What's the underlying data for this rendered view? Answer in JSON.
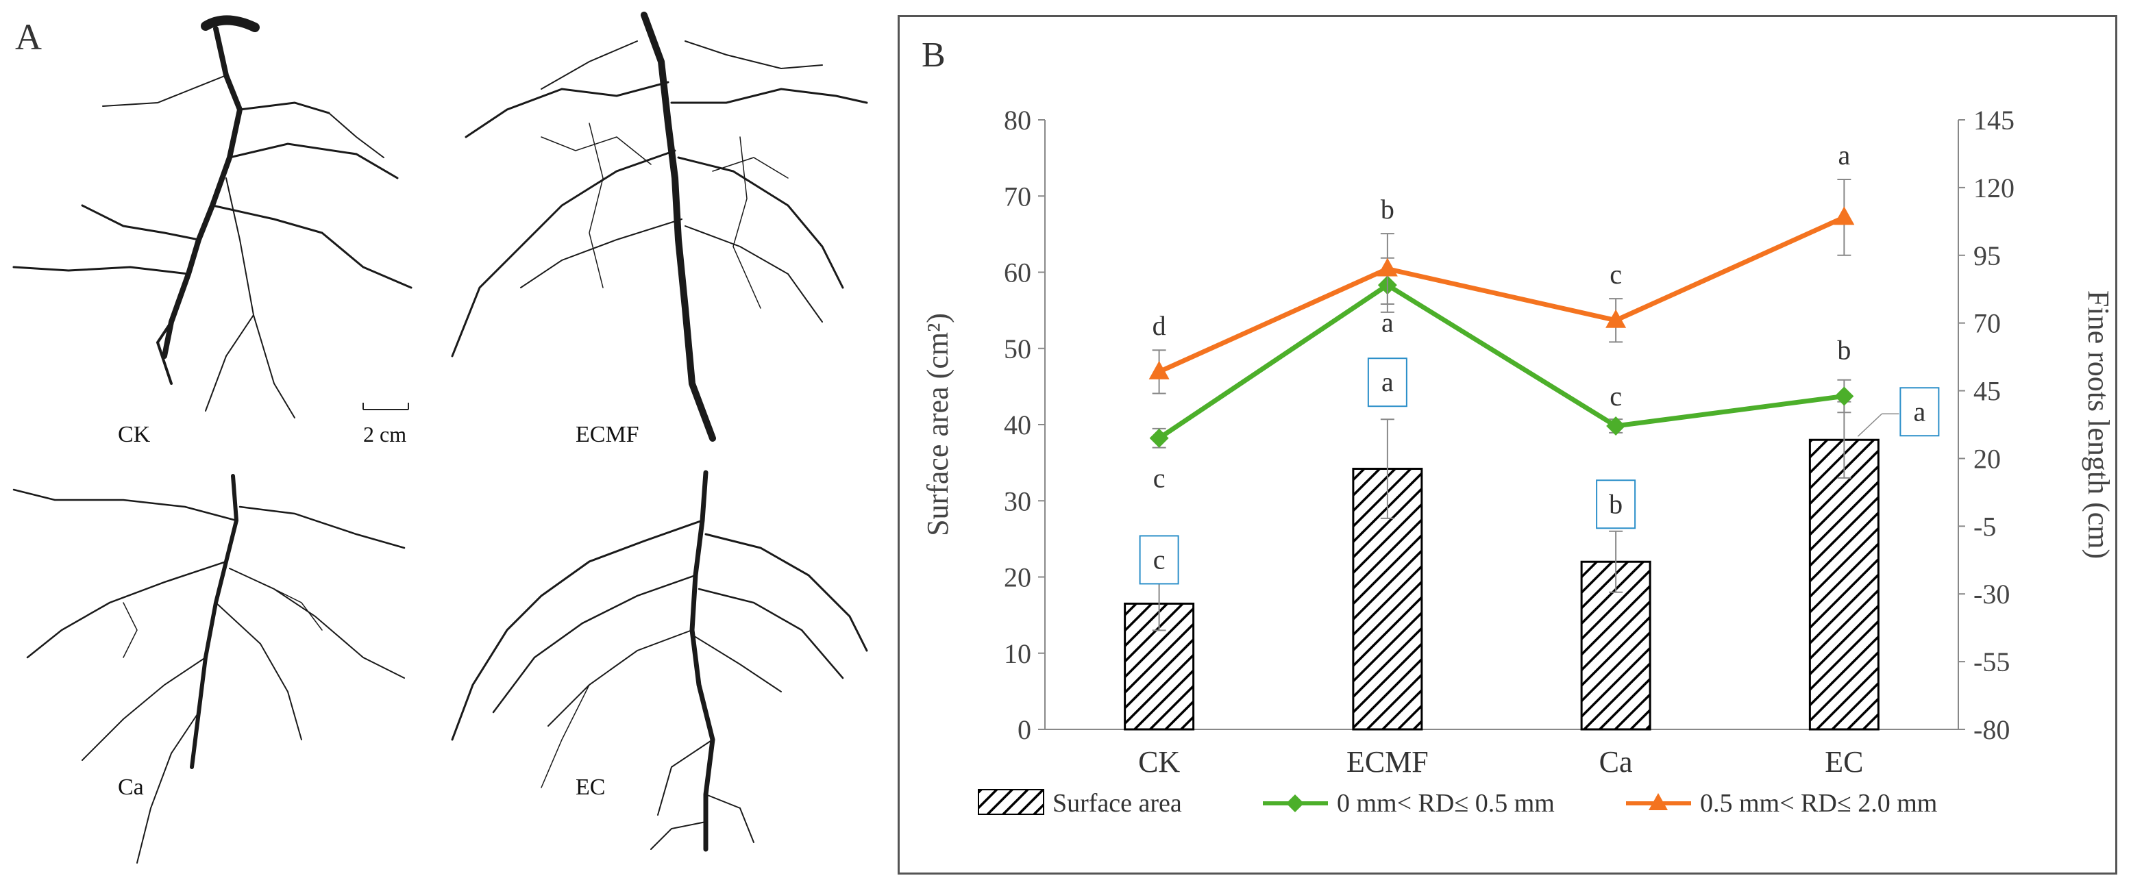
{
  "panel_a": {
    "letter": "A",
    "scale_bar_label": "2 cm",
    "samples": [
      {
        "label": "CK"
      },
      {
        "label": "ECMF"
      },
      {
        "label": "Ca"
      },
      {
        "label": "EC"
      }
    ]
  },
  "panel_b": {
    "letter": "B"
  },
  "chart_data": {
    "type": "bar",
    "categories": [
      "CK",
      "ECMF",
      "Ca",
      "EC"
    ],
    "y_left": {
      "label": "Surface area (cm²)",
      "range": [
        0,
        80
      ],
      "ticks": [
        0,
        10,
        20,
        30,
        40,
        50,
        60,
        70,
        80
      ]
    },
    "y_right": {
      "label": "Fine roots length (cm)",
      "range": [
        -80,
        145
      ],
      "ticks": [
        -80,
        -55,
        -30,
        -5,
        20,
        45,
        70,
        95,
        120,
        145
      ]
    },
    "series": [
      {
        "name": "Surface area",
        "type": "bar",
        "axis": "left",
        "values": [
          16.5,
          34.2,
          22.0,
          38.0
        ],
        "errors": [
          3.5,
          6.5,
          4.0,
          5.0
        ],
        "letters": [
          "c",
          "a",
          "b",
          "a"
        ],
        "color": "#000000"
      },
      {
        "name": "0 mm< RD≤ 0.5 mm",
        "type": "line",
        "axis": "right",
        "marker": "diamond",
        "values": [
          27.5,
          84,
          32,
          43
        ],
        "errors": [
          3.5,
          10,
          2.5,
          6
        ],
        "letters": [
          "c",
          "a",
          "c",
          "b"
        ],
        "color": "#4caf2a"
      },
      {
        "name": "0.5 mm< RD≤ 2.0 mm",
        "type": "line",
        "axis": "right",
        "marker": "triangle",
        "values": [
          52,
          90,
          71,
          109
        ],
        "errors": [
          8,
          13,
          8,
          14
        ],
        "letters": [
          "d",
          "b",
          "c",
          "a"
        ],
        "color": "#f4731f"
      }
    ],
    "legend_position": "bottom"
  }
}
